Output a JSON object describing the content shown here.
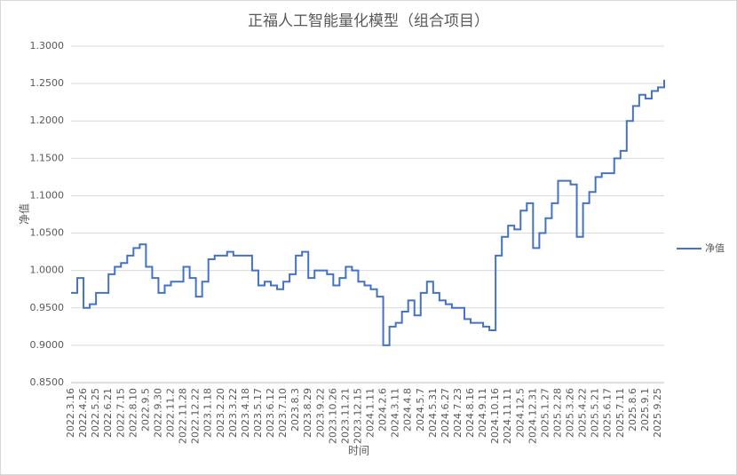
{
  "chart_data": {
    "type": "line",
    "title": "正福人工智能量化模型（组合项目）",
    "x_label": "时间",
    "y_label": "净值",
    "grid": true,
    "legend": "right",
    "categories": [
      "2022.3.16",
      null,
      "2022.4.26",
      null,
      "2022.5.25",
      null,
      "2022.6.21",
      null,
      "2022.7.15",
      null,
      "2022.8.10",
      null,
      "2022.9.5",
      null,
      "2022.9.30",
      null,
      "2022.11.2",
      null,
      "2022.11.28",
      null,
      "2022.12.22",
      null,
      "2023.1.18",
      null,
      "2023.2.20",
      null,
      "2023.3.22",
      null,
      "2023.4.18",
      null,
      "2023.5.17",
      null,
      "2023.6.12",
      null,
      "2023.7.10",
      null,
      "2023.8.3",
      null,
      "2023.8.29",
      null,
      "2023.9.22",
      null,
      "2023.10.26",
      null,
      "2023.11.21",
      null,
      "2023.12.15",
      null,
      "2024.1.11",
      null,
      "2024.2.6",
      null,
      "2024.3.11",
      null,
      "2024.4.8",
      null,
      "2024.5.7",
      null,
      "2024.5.31",
      null,
      "2024.6.27",
      null,
      "2024.7.23",
      null,
      "2024.8.16",
      null,
      "2024.9.11",
      null,
      "2024.10.16",
      null,
      "2024.11.11",
      null,
      "2024.12.5",
      null,
      "2024.12.31",
      null,
      "2025.1.27",
      null,
      "2025.2.28",
      null,
      "2025.3.26",
      null,
      "2025.4.22",
      null,
      "2025.5.21",
      null,
      "2025.6.17",
      null,
      "2025.7.11",
      null,
      "2025.8.6",
      null,
      "2025.9.1",
      null,
      "2025.9.25",
      null
    ],
    "series": [
      {
        "name": "净值",
        "color": "#4472c4",
        "values": [
          0.97,
          0.99,
          0.95,
          0.955,
          0.97,
          0.97,
          0.995,
          1.005,
          1.01,
          1.02,
          1.03,
          1.035,
          1.005,
          0.99,
          0.97,
          0.98,
          0.985,
          0.985,
          1.005,
          0.99,
          0.965,
          0.985,
          1.015,
          1.02,
          1.02,
          1.025,
          1.02,
          1.02,
          1.02,
          1.0,
          0.98,
          0.985,
          0.98,
          0.975,
          0.985,
          0.995,
          1.02,
          1.025,
          0.99,
          1.0,
          1.0,
          0.995,
          0.98,
          0.99,
          1.005,
          1.0,
          0.985,
          0.98,
          0.975,
          0.965,
          0.9,
          0.925,
          0.93,
          0.945,
          0.96,
          0.94,
          0.97,
          0.985,
          0.97,
          0.96,
          0.955,
          0.95,
          0.95,
          0.935,
          0.93,
          0.93,
          0.925,
          0.92,
          1.02,
          1.045,
          1.06,
          1.055,
          1.08,
          1.09,
          1.03,
          1.05,
          1.07,
          1.09,
          1.12,
          1.12,
          1.115,
          1.045,
          1.09,
          1.105,
          1.125,
          1.13,
          1.13,
          1.15,
          1.16,
          1.2,
          1.22,
          1.235,
          1.23,
          1.24,
          1.245,
          1.255
        ]
      }
    ],
    "ylim": [
      0.85,
      1.3
    ],
    "yticks": [
      {
        "value": 0.85,
        "label": "0.8500"
      },
      {
        "value": 0.9,
        "label": "0.9000"
      },
      {
        "value": 0.95,
        "label": "0.9500"
      },
      {
        "value": 1.0,
        "label": "1.0000"
      },
      {
        "value": 1.05,
        "label": "1.0500"
      },
      {
        "value": 1.1,
        "label": "1.1000"
      },
      {
        "value": 1.15,
        "label": "1.1500"
      },
      {
        "value": 1.2,
        "label": "1.2000"
      },
      {
        "value": 1.25,
        "label": "1.2500"
      },
      {
        "value": 1.3,
        "label": "1.3000"
      }
    ]
  }
}
